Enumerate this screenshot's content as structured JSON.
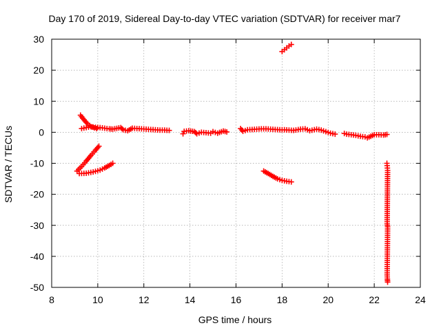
{
  "chart_data": {
    "type": "scatter",
    "title": "Day 170 of 2019, Sidereal Day-to-day VTEC variation (SDTVAR) for receiver mar7",
    "xlabel": "GPS time / hours",
    "ylabel": "SDTVAR / TECUs",
    "xlim": [
      8,
      24
    ],
    "ylim": [
      -50,
      30
    ],
    "xticks": [
      8,
      10,
      12,
      14,
      16,
      18,
      20,
      22,
      24
    ],
    "yticks": [
      -50,
      -40,
      -30,
      -20,
      -10,
      0,
      10,
      20,
      30
    ],
    "grid": true,
    "marker": "plus",
    "color": "#ff0000",
    "series": [
      {
        "name": "arc-upper-left",
        "x": [
          9.25,
          9.35,
          9.45,
          9.55,
          9.65,
          9.75,
          9.85,
          9.95
        ],
        "y": [
          5.5,
          4.5,
          3.6,
          2.8,
          2.2,
          1.7,
          1.4,
          1.2
        ]
      },
      {
        "name": "arc-main",
        "x": [
          9.3,
          9.5,
          9.7,
          9.9,
          10.1,
          10.3,
          10.5,
          10.65,
          11.0,
          11.1,
          11.3,
          11.5,
          11.7,
          11.9,
          12.1,
          12.3,
          12.5,
          12.7,
          12.9,
          13.1
        ],
        "y": [
          1.2,
          1.5,
          1.8,
          1.6,
          1.5,
          1.3,
          1.1,
          1.0,
          1.5,
          0.8,
          0.5,
          1.3,
          1.2,
          1.1,
          1.0,
          0.9,
          0.8,
          0.7,
          0.7,
          0.6
        ]
      },
      {
        "name": "arc-mid-patches",
        "x": [
          13.7,
          13.75,
          13.95,
          14.2,
          14.3,
          14.5,
          14.9,
          15.0,
          15.2,
          15.45,
          15.6
        ],
        "y": [
          -0.5,
          0.3,
          0.5,
          0.2,
          -0.5,
          0.0,
          -0.3,
          0.2,
          -0.3,
          0.4,
          0.1
        ]
      },
      {
        "name": "arc-afternoon",
        "x": [
          16.2,
          16.3,
          16.5,
          16.7,
          16.9,
          17.1,
          17.3,
          17.5,
          17.7,
          17.9,
          18.1,
          18.3,
          18.5,
          18.8,
          19.0,
          19.2,
          19.5,
          19.7,
          19.9,
          20.1,
          20.3
        ],
        "y": [
          1.2,
          0.3,
          0.8,
          0.9,
          1.0,
          1.1,
          1.1,
          1.0,
          0.9,
          0.8,
          0.8,
          0.7,
          0.6,
          1.0,
          1.1,
          0.5,
          1.0,
          0.7,
          0.2,
          -0.3,
          -0.6
        ]
      },
      {
        "name": "arc-evening",
        "x": [
          20.7,
          20.8,
          21.0,
          21.2,
          21.4,
          21.6,
          21.7,
          22.0,
          22.2,
          22.4,
          22.55
        ],
        "y": [
          -0.4,
          -0.6,
          -0.8,
          -1.0,
          -1.3,
          -1.5,
          -1.8,
          -0.8,
          -0.8,
          -0.9,
          -0.7
        ]
      },
      {
        "name": "arc-lower-rising",
        "x": [
          9.1,
          9.3,
          9.5,
          9.7,
          9.9,
          10.05
        ],
        "y": [
          -12.5,
          -11.0,
          -9.3,
          -7.5,
          -5.8,
          -4.5
        ]
      },
      {
        "name": "arc-lower-flat",
        "x": [
          9.2,
          9.5,
          9.8,
          10.1,
          10.3,
          10.5,
          10.65
        ],
        "y": [
          -13.3,
          -13.2,
          -12.8,
          -12.2,
          -11.5,
          -10.7,
          -10.0
        ]
      },
      {
        "name": "arc-afternoon-low",
        "x": [
          17.2,
          17.4,
          17.6,
          17.8,
          18.0,
          18.2,
          18.4
        ],
        "y": [
          -12.5,
          -13.3,
          -14.2,
          -15.0,
          -15.5,
          -15.8,
          -16.0
        ]
      },
      {
        "name": "arc-high",
        "x": [
          18.0,
          18.1,
          18.2,
          18.3,
          18.4
        ],
        "y": [
          26.0,
          26.6,
          27.2,
          27.8,
          28.3
        ]
      },
      {
        "name": "late-scatter",
        "x": [
          22.55,
          22.58,
          22.56,
          22.58,
          22.56,
          22.57,
          22.58
        ],
        "y": [
          -10.0,
          -12.3,
          -29.5,
          -30.5,
          -46.0,
          -47.3,
          -48.3
        ]
      }
    ]
  }
}
